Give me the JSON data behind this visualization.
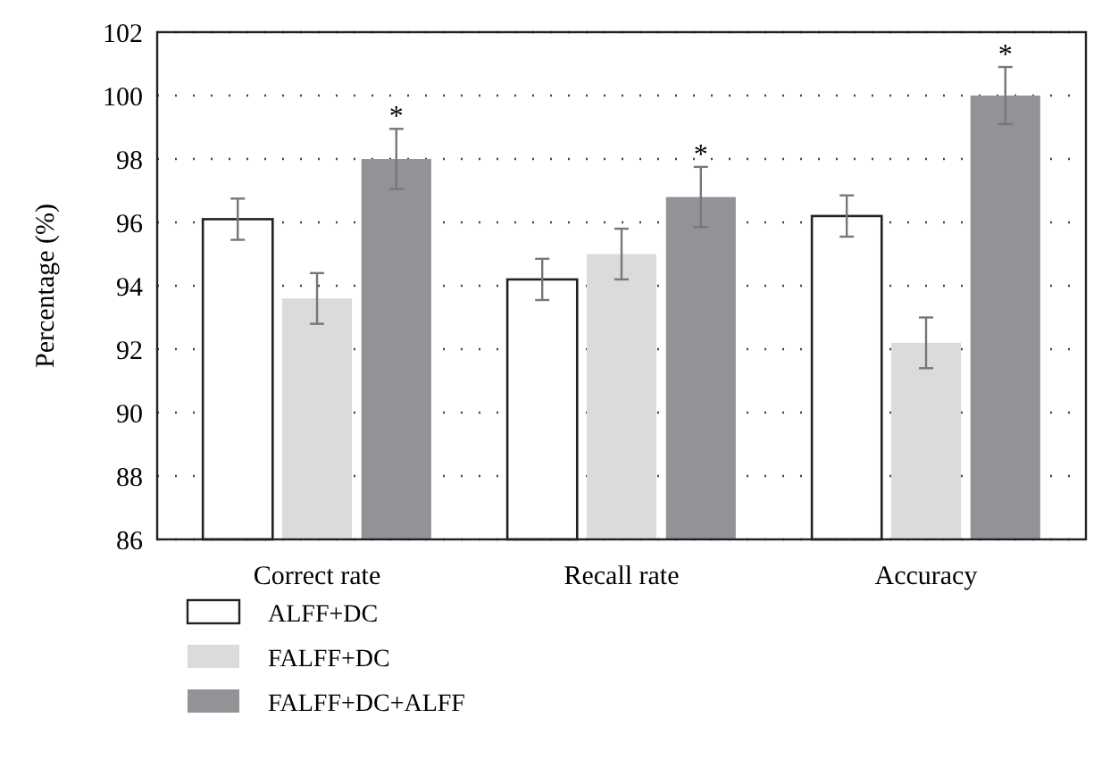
{
  "chart_data": {
    "type": "bar",
    "ylabel": "Percentage (%)",
    "categories": [
      "Correct rate",
      "Recall rate",
      "Accuracy"
    ],
    "series": [
      {
        "name": "ALFF+DC",
        "color": "#ffffff",
        "values": [
          96.1,
          94.2,
          96.2
        ],
        "errors": [
          0.65,
          0.65,
          0.65
        ]
      },
      {
        "name": "FALFF+DC",
        "color": "#dadbdd",
        "values": [
          93.6,
          95.0,
          92.2
        ],
        "errors": [
          0.8,
          0.8,
          0.8
        ]
      },
      {
        "name": "FALFF+DC+ALFF",
        "color": "#929396",
        "values": [
          98.0,
          96.8,
          100.0
        ],
        "errors": [
          0.95,
          0.95,
          0.9
        ]
      }
    ],
    "ylim": [
      86,
      102
    ],
    "yticks": [
      86,
      88,
      90,
      92,
      94,
      96,
      98,
      100,
      102
    ],
    "grid": "y",
    "legend": "bottom",
    "annotations": [
      "*",
      "*",
      "*"
    ]
  }
}
